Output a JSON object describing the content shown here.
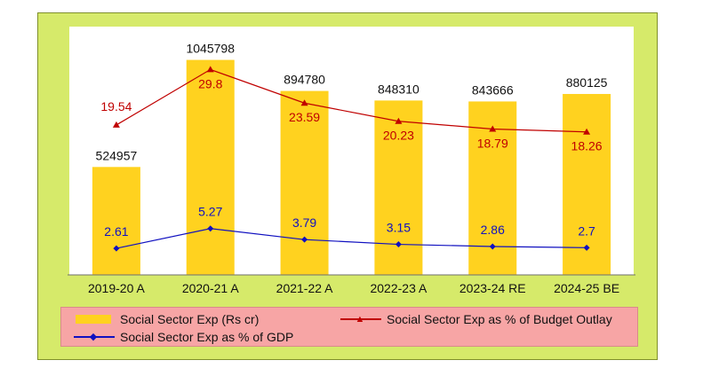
{
  "chart_data": {
    "type": "bar",
    "categories": [
      "2019-20 A",
      "2020-21 A",
      "2021-22 A",
      "2022-23 A",
      "2023-24 RE",
      "2024-25 BE"
    ],
    "series": [
      {
        "name": "Social Sector Exp (Rs cr)",
        "type": "bar",
        "color": "#ffd21f",
        "values": [
          524957,
          1045798,
          894780,
          848310,
          843666,
          880125
        ],
        "labels": [
          "524957",
          "1045798",
          "894780",
          "848310",
          "843666",
          "880125"
        ]
      },
      {
        "name": "Social Sector Exp as % of Budget Outlay",
        "type": "line",
        "color": "#c00000",
        "marker": "triangle",
        "values": [
          19.54,
          29.8,
          23.59,
          20.23,
          18.79,
          18.26
        ],
        "labels": [
          "19.54",
          "29.8",
          "23.59",
          "20.23",
          "18.79",
          "18.26"
        ]
      },
      {
        "name": "Social Sector Exp as % of GDP",
        "type": "line",
        "color": "#1010c0",
        "marker": "diamond",
        "values": [
          2.61,
          5.27,
          3.79,
          3.15,
          2.86,
          2.7
        ],
        "labels": [
          "2.61",
          "5.27",
          "3.79",
          "3.15",
          "2.86",
          "2.7"
        ]
      }
    ],
    "legend": "bottom",
    "grid": false
  },
  "legend": {
    "bar_label": "Social Sector Exp (Rs cr)",
    "budget_label": "Social Sector Exp as % of Budget Outlay",
    "gdp_label": "Social Sector Exp as % of GDP"
  }
}
